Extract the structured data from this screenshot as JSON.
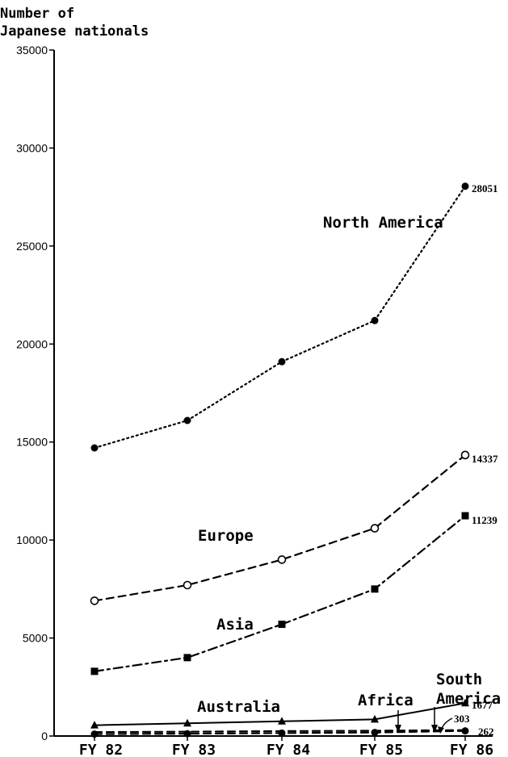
{
  "chart_data": {
    "type": "line",
    "title": "",
    "ylabel": "Number of Japanese nationals",
    "xlabel": "",
    "categories": [
      "FY 82",
      "FY 83",
      "FY 84",
      "FY 85",
      "FY 86"
    ],
    "ylim": [
      0,
      35000
    ],
    "yticks": [
      0,
      5000,
      10000,
      15000,
      20000,
      25000,
      30000,
      35000
    ],
    "grid": false,
    "series": [
      {
        "name": "North America",
        "values": [
          14700,
          16100,
          19100,
          21200,
          28051
        ],
        "end_label": "28051",
        "style": "dotted",
        "marker": "filled-circle"
      },
      {
        "name": "Europe",
        "values": [
          6900,
          7700,
          9000,
          10600,
          14337
        ],
        "end_label": "14337",
        "style": "dashed",
        "marker": "open-circle"
      },
      {
        "name": "Asia",
        "values": [
          3300,
          4000,
          5700,
          7500,
          11239
        ],
        "end_label": "11239",
        "style": "dash-dot",
        "marker": "filled-square"
      },
      {
        "name": "Australia",
        "values": [
          550,
          650,
          750,
          850,
          1677
        ],
        "end_label": "1677",
        "style": "solid",
        "marker": "filled-triangle"
      },
      {
        "name": "South America",
        "values": [
          200,
          220,
          250,
          270,
          303
        ],
        "end_label": "303",
        "style": "dashed",
        "marker": "none"
      },
      {
        "name": "Africa",
        "values": [
          100,
          120,
          150,
          180,
          262
        ],
        "end_label": "262",
        "style": "dashed",
        "marker": "filled-circle"
      }
    ]
  }
}
